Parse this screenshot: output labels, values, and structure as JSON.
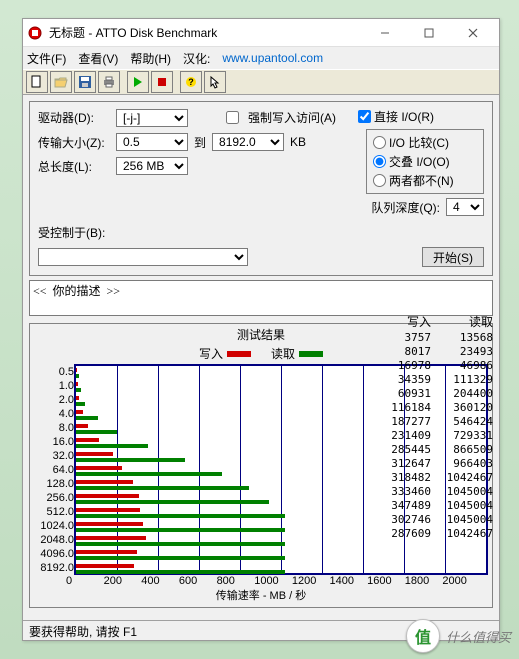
{
  "window": {
    "title": "无标题 - ATTO Disk Benchmark",
    "menus": {
      "file": "文件(F)",
      "view": "查看(V)",
      "help": "帮助(H)",
      "han": "汉化:",
      "url": "www.upantool.com"
    }
  },
  "toolbar": {
    "icons": [
      "new",
      "open",
      "save",
      "print",
      "|",
      "start",
      "stop",
      "|",
      "help",
      "cursor"
    ]
  },
  "form": {
    "drive_label": "驱动器(D):",
    "drive_value": "[-j-]",
    "force_label": "强制写入访问(A)",
    "force_checked": false,
    "direct_label": "直接 I/O(R)",
    "direct_checked": true,
    "xfer_label": "传输大小(Z):",
    "xfer_from": "0.5",
    "xfer_to_lbl": "到",
    "xfer_to": "8192.0",
    "xfer_unit": "KB",
    "len_label": "总长度(L):",
    "len_value": "256 MB",
    "radios": {
      "compare": "I/O 比较(C)",
      "overlap": "交叠 I/O(O)",
      "neither": "两者都不(N)",
      "selected": "overlap"
    },
    "queue_label": "队列深度(Q):",
    "queue_value": "4",
    "ctrl_label": "受控制于(B):",
    "ctrl_value": "",
    "start_label": "开始(S)",
    "desc_prompt": "<<  你的描述  >>"
  },
  "results": {
    "title": "测试结果",
    "legend_write": "写入",
    "legend_read": "读取",
    "hdr_write": "写入",
    "hdr_read": "读取",
    "x_caption": "传输速率 - MB / 秒",
    "x_ticks": [
      "0",
      "200",
      "400",
      "600",
      "800",
      "1000",
      "1200",
      "1400",
      "1600",
      "1800",
      "2000"
    ],
    "x_max": 2000,
    "colors": {
      "write": "#d00000",
      "read": "#008000",
      "frame": "#000080",
      "bg": "#ffffff"
    },
    "sizes": [
      "0.5",
      "1.0",
      "2.0",
      "4.0",
      "8.0",
      "16.0",
      "32.0",
      "64.0",
      "128.0",
      "256.0",
      "512.0",
      "1024.0",
      "2048.0",
      "4096.0",
      "8192.0"
    ],
    "write_kb": [
      3757,
      8017,
      16978,
      34359,
      60931,
      116184,
      187277,
      231409,
      285445,
      312647,
      318482,
      333460,
      347489,
      302746,
      287609
    ],
    "read_kb": [
      13568,
      23493,
      46986,
      111329,
      204400,
      360120,
      546424,
      729331,
      866509,
      966403,
      1042467,
      1045004,
      1045004,
      1045004,
      1042467
    ]
  },
  "status": {
    "text": "要获得帮助, 请按 F1"
  },
  "watermark": {
    "char": "值",
    "text": "什么值得买"
  }
}
